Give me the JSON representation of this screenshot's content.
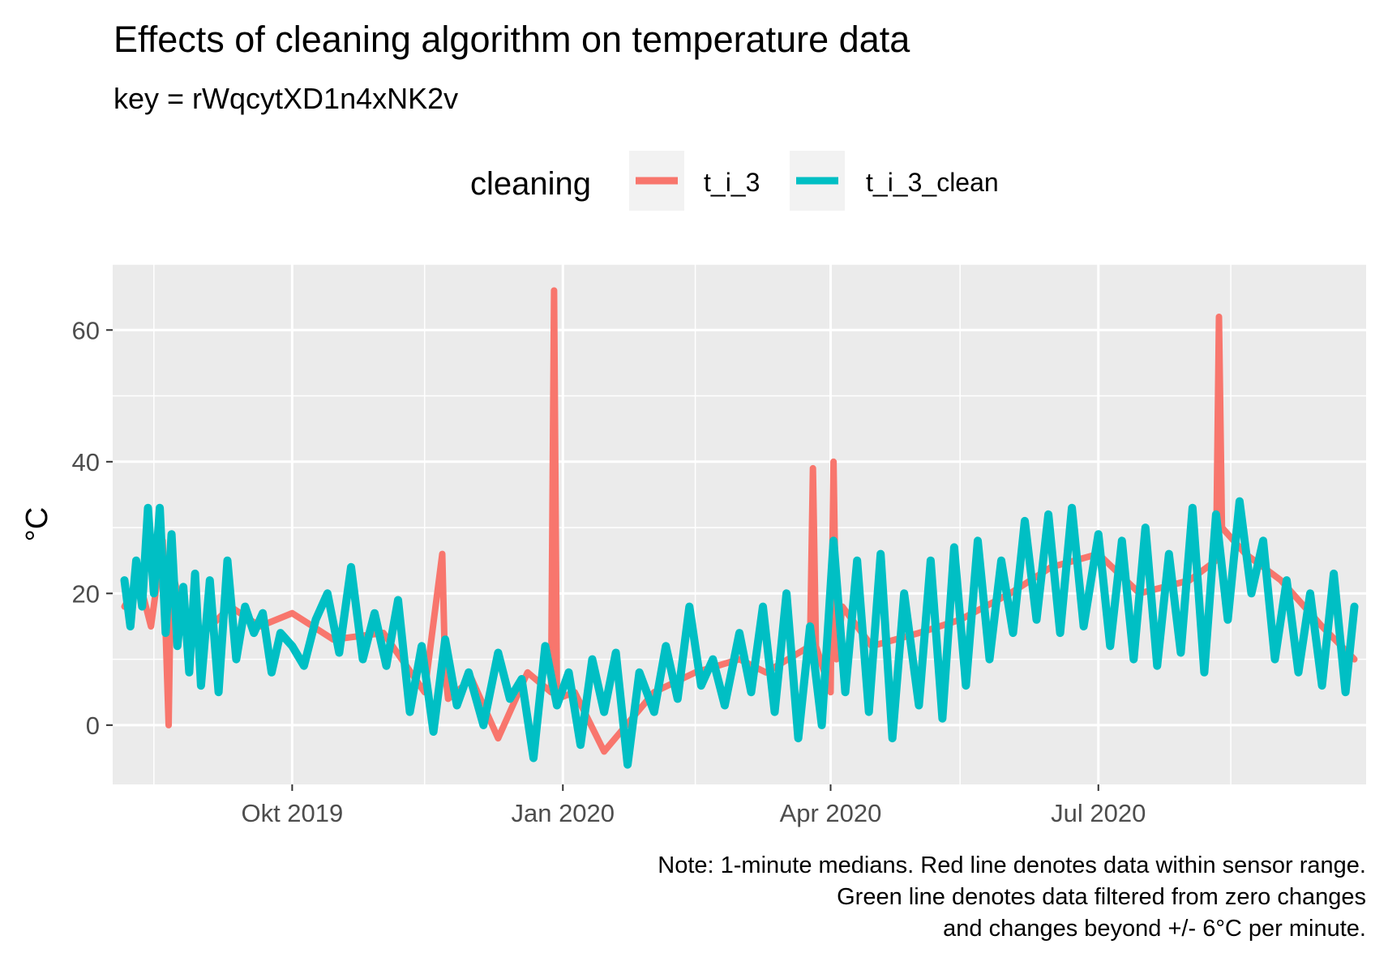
{
  "chart_data": {
    "type": "line",
    "title": "Effects of cleaning algorithm on temperature data",
    "subtitle": "key = rWqcytXD1n4xNK2v",
    "xlabel": "",
    "ylabel": "°C",
    "x_range": [
      "2019-08-01",
      "2020-09-30"
    ],
    "ylim": [
      -9,
      70
    ],
    "x_ticks": [
      {
        "date": "2019-10-01",
        "label": "Okt 2019"
      },
      {
        "date": "2020-01-01",
        "label": "Jan 2020"
      },
      {
        "date": "2020-04-01",
        "label": "Apr 2020"
      },
      {
        "date": "2020-07-01",
        "label": "Jul 2020"
      }
    ],
    "x_minor_ticks": [
      "2019-08-15",
      "2019-11-15",
      "2020-02-15",
      "2020-05-15",
      "2020-08-15"
    ],
    "y_ticks": [
      0,
      20,
      40,
      60
    ],
    "grid": true,
    "legend": {
      "title": "cleaning",
      "position": "top"
    },
    "caption": [
      "Note: 1-minute medians. Red line denotes data within sensor range.",
      "Green line denotes data filtered from zero changes",
      "and changes beyond +/- 6°C per minute."
    ],
    "series": [
      {
        "name": "t_i_3",
        "color": "#F8766D",
        "x": [
          "2019-08-05",
          "2019-08-10",
          "2019-08-14",
          "2019-08-18",
          "2019-08-20",
          "2019-08-21",
          "2019-08-22",
          "2019-08-24",
          "2019-09-01",
          "2019-09-10",
          "2019-09-20",
          "2019-10-01",
          "2019-10-15",
          "2019-11-01",
          "2019-11-15",
          "2019-11-21",
          "2019-11-22",
          "2019-11-23",
          "2019-12-01",
          "2019-12-10",
          "2019-12-20",
          "2019-12-28",
          "2019-12-29",
          "2019-12-30",
          "2020-01-05",
          "2020-01-15",
          "2020-02-01",
          "2020-02-15",
          "2020-03-01",
          "2020-03-10",
          "2020-03-25",
          "2020-03-26",
          "2020-03-27",
          "2020-04-01",
          "2020-04-02",
          "2020-04-03",
          "2020-04-05",
          "2020-04-15",
          "2020-05-01",
          "2020-05-15",
          "2020-06-01",
          "2020-06-15",
          "2020-07-01",
          "2020-07-15",
          "2020-08-01",
          "2020-08-10",
          "2020-08-11",
          "2020-08-12",
          "2020-08-20",
          "2020-09-01",
          "2020-09-15",
          "2020-09-26"
        ],
        "y": [
          18,
          22,
          15,
          28,
          0,
          29,
          22,
          18,
          14,
          18,
          15,
          17,
          13,
          14,
          5,
          26,
          8,
          4,
          7,
          -2,
          8,
          5,
          66,
          4,
          5,
          -4,
          5,
          8,
          10,
          8,
          12,
          39,
          12,
          5,
          40,
          10,
          18,
          12,
          14,
          16,
          20,
          24,
          26,
          20,
          22,
          25,
          62,
          30,
          26,
          22,
          15,
          10
        ]
      },
      {
        "name": "t_i_3_clean",
        "color": "#00BFC4",
        "x": [
          "2019-08-05",
          "2019-08-07",
          "2019-08-09",
          "2019-08-11",
          "2019-08-13",
          "2019-08-15",
          "2019-08-17",
          "2019-08-19",
          "2019-08-21",
          "2019-08-23",
          "2019-08-25",
          "2019-08-27",
          "2019-08-29",
          "2019-08-31",
          "2019-09-03",
          "2019-09-06",
          "2019-09-09",
          "2019-09-12",
          "2019-09-15",
          "2019-09-18",
          "2019-09-21",
          "2019-09-24",
          "2019-09-27",
          "2019-10-01",
          "2019-10-05",
          "2019-10-09",
          "2019-10-13",
          "2019-10-17",
          "2019-10-21",
          "2019-10-25",
          "2019-10-29",
          "2019-11-02",
          "2019-11-06",
          "2019-11-10",
          "2019-11-14",
          "2019-11-18",
          "2019-11-22",
          "2019-11-26",
          "2019-11-30",
          "2019-12-05",
          "2019-12-10",
          "2019-12-14",
          "2019-12-18",
          "2019-12-22",
          "2019-12-26",
          "2019-12-30",
          "2020-01-03",
          "2020-01-07",
          "2020-01-11",
          "2020-01-15",
          "2020-01-19",
          "2020-01-23",
          "2020-01-27",
          "2020-02-01",
          "2020-02-05",
          "2020-02-09",
          "2020-02-13",
          "2020-02-17",
          "2020-02-21",
          "2020-02-25",
          "2020-03-01",
          "2020-03-05",
          "2020-03-09",
          "2020-03-13",
          "2020-03-17",
          "2020-03-21",
          "2020-03-25",
          "2020-03-29",
          "2020-04-02",
          "2020-04-06",
          "2020-04-10",
          "2020-04-14",
          "2020-04-18",
          "2020-04-22",
          "2020-04-26",
          "2020-05-01",
          "2020-05-05",
          "2020-05-09",
          "2020-05-13",
          "2020-05-17",
          "2020-05-21",
          "2020-05-25",
          "2020-05-29",
          "2020-06-02",
          "2020-06-06",
          "2020-06-10",
          "2020-06-14",
          "2020-06-18",
          "2020-06-22",
          "2020-06-26",
          "2020-07-01",
          "2020-07-05",
          "2020-07-09",
          "2020-07-13",
          "2020-07-17",
          "2020-07-21",
          "2020-07-25",
          "2020-07-29",
          "2020-08-02",
          "2020-08-06",
          "2020-08-10",
          "2020-08-14",
          "2020-08-18",
          "2020-08-22",
          "2020-08-26",
          "2020-08-30",
          "2020-09-03",
          "2020-09-07",
          "2020-09-11",
          "2020-09-15",
          "2020-09-19",
          "2020-09-23",
          "2020-09-26"
        ],
        "y": [
          22,
          15,
          25,
          18,
          33,
          20,
          33,
          14,
          29,
          12,
          21,
          8,
          23,
          6,
          22,
          5,
          25,
          10,
          18,
          14,
          17,
          8,
          14,
          12,
          9,
          16,
          20,
          11,
          24,
          10,
          17,
          9,
          19,
          2,
          12,
          -1,
          13,
          3,
          8,
          0,
          11,
          4,
          7,
          -5,
          12,
          3,
          8,
          -3,
          10,
          2,
          11,
          -6,
          8,
          2,
          12,
          4,
          18,
          6,
          10,
          3,
          14,
          5,
          18,
          2,
          20,
          -2,
          15,
          0,
          28,
          5,
          25,
          2,
          26,
          -2,
          20,
          3,
          25,
          1,
          27,
          6,
          28,
          10,
          25,
          14,
          31,
          16,
          32,
          14,
          33,
          15,
          29,
          12,
          28,
          10,
          30,
          9,
          26,
          11,
          33,
          8,
          32,
          16,
          34,
          20,
          28,
          10,
          22,
          8,
          20,
          6,
          23,
          5,
          18
        ]
      }
    ]
  }
}
